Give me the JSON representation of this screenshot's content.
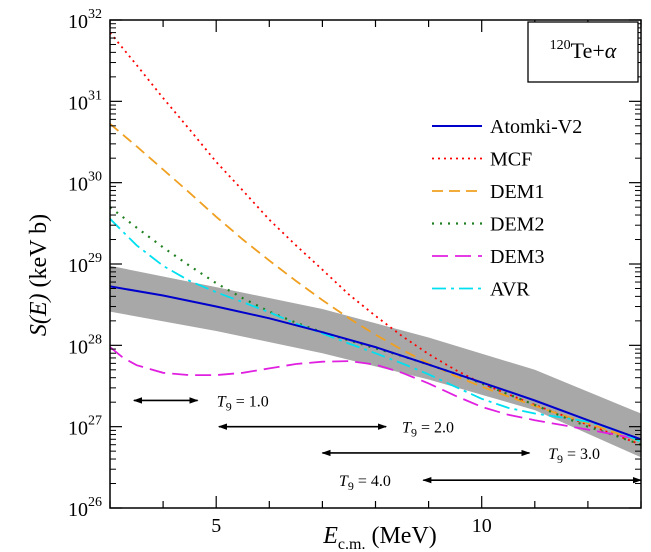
{
  "chart_data": {
    "type": "line",
    "title": "",
    "annotation": "120Te+α",
    "annotation_parts": {
      "mass": "120",
      "nucleus": "Te+",
      "particle": "α"
    },
    "xlabel": {
      "main": "E",
      "sub": "c.m.",
      "unit": "(MeV)"
    },
    "ylabel": {
      "main": "S(E)",
      "unit": "(keV b)"
    },
    "xlim": [
      3,
      13
    ],
    "ylim": [
      1e+26,
      1e+32
    ],
    "yscale": "log",
    "x_ticks": [
      {
        "value": 5,
        "label": "5"
      },
      {
        "value": 10,
        "label": "10"
      }
    ],
    "y_ticks": [
      {
        "value": 1e+26,
        "base": "10",
        "exp": "26"
      },
      {
        "value": 1e+27,
        "base": "10",
        "exp": "27"
      },
      {
        "value": 1e+28,
        "base": "10",
        "exp": "28"
      },
      {
        "value": 1e+29,
        "base": "10",
        "exp": "29"
      },
      {
        "value": 1e+30,
        "base": "10",
        "exp": "30"
      },
      {
        "value": 1e+31,
        "base": "10",
        "exp": "31"
      },
      {
        "value": 1e+32,
        "base": "10",
        "exp": "32"
      }
    ],
    "grid": false,
    "legend_position": "right",
    "band": {
      "color": "#a8a8a8",
      "x": [
        3,
        5,
        7,
        9,
        11,
        13
      ],
      "lower": [
        2.6e+28,
        1.5e+28,
        8e+27,
        3.8e+27,
        1.6e+27,
        4.2e+26
      ],
      "upper": [
        9.5e+28,
        5.2e+28,
        2.8e+28,
        1.25e+28,
        5e+27,
        1.45e+27
      ]
    },
    "series": [
      {
        "name": "Atomki-V2",
        "color": "#0000cc",
        "dash": "",
        "width": 2,
        "x": [
          3,
          4,
          5,
          6,
          7,
          8,
          9,
          10,
          11,
          12,
          13
        ],
        "y": [
          5.3e+28,
          4.1e+28,
          3e+28,
          2.15e+28,
          1.45e+28,
          9.5e+27,
          5.8e+27,
          3.5e+27,
          2.1e+27,
          1.2e+27,
          7e+26
        ]
      },
      {
        "name": "MCF",
        "color": "#ff0000",
        "dash": "2,4",
        "width": 1.8,
        "x": [
          3,
          3.5,
          4,
          4.5,
          5,
          5.5,
          6,
          6.5,
          7,
          7.5,
          8,
          8.5,
          9,
          9.5,
          10,
          10.5,
          11,
          11.5,
          12,
          12.5,
          13
        ],
        "y": [
          7e+31,
          2.8e+31,
          1.1e+31,
          4.5e+30,
          1.8e+30,
          8e+29,
          3.5e+29,
          1.7e+29,
          8.5e+28,
          4.2e+28,
          2.3e+28,
          1.3e+28,
          7.8e+27,
          5e+27,
          3.4e+27,
          2.5e+27,
          1.85e+27,
          1.4e+27,
          1.05e+27,
          8e+26,
          6e+26
        ]
      },
      {
        "name": "DEM1",
        "color": "#f0a020",
        "dash": "11,6",
        "width": 1.8,
        "x": [
          3,
          3.5,
          4,
          4.5,
          5,
          5.5,
          6,
          6.5,
          7,
          7.5,
          8,
          8.5,
          9,
          9.5,
          10,
          10.5,
          11,
          11.5,
          12,
          12.5,
          13
        ],
        "y": [
          5.3e+30,
          2.8e+30,
          1.45e+30,
          7.5e+29,
          3.8e+29,
          2e+29,
          1.1e+29,
          6.2e+28,
          3.6e+28,
          2.15e+28,
          1.35e+28,
          8.8e+27,
          6e+27,
          4.2e+27,
          3.1e+27,
          2.35e+27,
          1.8e+27,
          1.4e+27,
          1.1e+27,
          8.5e+26,
          6.5e+26
        ]
      },
      {
        "name": "DEM2",
        "color": "#208020",
        "dash": "2,6",
        "width": 2.2,
        "x": [
          3,
          3.5,
          4,
          4.5,
          5,
          5.5,
          6,
          6.5,
          7,
          7.5,
          8,
          8.5,
          9,
          9.5,
          10,
          10.5,
          11,
          11.5,
          12,
          12.5,
          13
        ],
        "y": [
          5e+29,
          2.8e+29,
          1.6e+29,
          9.5e+28,
          5.8e+28,
          3.8e+28,
          2.6e+28,
          1.9e+28,
          1.45e+28,
          1.15e+28,
          9.2e+27,
          7.4e+27,
          5.8e+27,
          4.5e+27,
          3.4e+27,
          2.5e+27,
          1.85e+27,
          1.35e+27,
          1e+27,
          7.8e+26,
          6e+26
        ]
      },
      {
        "name": "DEM3",
        "color": "#e020e0",
        "dash": "16,7",
        "width": 1.8,
        "x": [
          3,
          3.25,
          3.5,
          4,
          4.5,
          5,
          5.5,
          6,
          6.5,
          7,
          7.5,
          8,
          8.5,
          9,
          9.5,
          10,
          10.5,
          11,
          11.5,
          12,
          12.5,
          13
        ],
        "y": [
          9.5e+27,
          7e+27,
          5.7e+27,
          4.6e+27,
          4.3e+27,
          4.3e+27,
          4.6e+27,
          5.2e+27,
          5.9e+27,
          6.3e+27,
          6.4e+27,
          5.8e+27,
          4.6e+27,
          3.4e+27,
          2.4e+27,
          1.75e+27,
          1.4e+27,
          1.2e+27,
          1.05e+27,
          9.2e+26,
          8e+26,
          6.9e+26
        ]
      },
      {
        "name": "AVR",
        "color": "#00e0f0",
        "dash": "14,5,3,5",
        "width": 1.8,
        "x": [
          3,
          3.5,
          4,
          4.5,
          5,
          5.5,
          6,
          6.5,
          7,
          7.5,
          8,
          8.5,
          9,
          9.5,
          10,
          10.5,
          11,
          11.5,
          12,
          12.5,
          13
        ],
        "y": [
          3.6e+29,
          1.7e+29,
          9.5e+28,
          6.2e+28,
          4.5e+28,
          3.4e+28,
          2.55e+28,
          1.85e+28,
          1.4e+28,
          1.05e+28,
          8e+27,
          6e+27,
          4.4e+27,
          3.1e+27,
          2.2e+27,
          1.7e+27,
          1.45e+27,
          1.3e+27,
          1.15e+27,
          9.2e+26,
          6.5e+26
        ]
      }
    ],
    "arrows": [
      {
        "from": 3.45,
        "to": 4.65,
        "y": 2.1e+27
      },
      {
        "from": 5.05,
        "to": 8.2,
        "y": 1e+27
      },
      {
        "from": 7.0,
        "to": 10.9,
        "y": 4.75e+26
      },
      {
        "from": 8.9,
        "to": 13.0,
        "y": 2.2e+26
      }
    ],
    "arrow_labels": [
      {
        "T": "T",
        "sub": "9",
        "eq": " = 1.0",
        "x": 5.5,
        "y": 2.1e+27,
        "anchor": "middle"
      },
      {
        "T": "T",
        "sub": "9",
        "eq": " = 2.0",
        "x": 8.5,
        "y": 1e+27,
        "anchor": "start"
      },
      {
        "T": "T",
        "sub": "9",
        "eq": " = 3.0",
        "x": 11.25,
        "y": 4.75e+26,
        "anchor": "start"
      },
      {
        "T": "T",
        "sub": "9",
        "eq": " = 4.0",
        "x": 7.8,
        "y": 2.2e+26,
        "anchor": "middle"
      }
    ]
  }
}
